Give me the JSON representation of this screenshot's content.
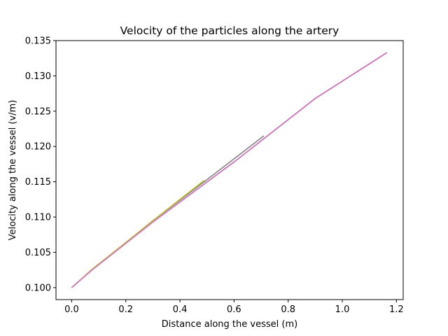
{
  "chart_data": {
    "type": "line",
    "title": "Velocity of the particles along the artery",
    "xlabel": "Distance along the vessel (m)",
    "ylabel": "Velocity along the vessel (v/m)",
    "xlim": [
      -0.058,
      1.225
    ],
    "ylim": [
      0.0983,
      0.135
    ],
    "xticks": [
      "0.0",
      "0.2",
      "0.4",
      "0.6",
      "0.8",
      "1.0",
      "1.2"
    ],
    "yticks": [
      "0.100",
      "0.105",
      "0.110",
      "0.115",
      "0.120",
      "0.125",
      "0.130",
      "0.135"
    ],
    "grid": false,
    "legend": "none",
    "series": [
      {
        "color": "#1f77b4",
        "points": [
          [
            0.0,
            0.1
          ],
          [
            0.075,
            0.1025
          ],
          [
            0.3,
            0.1093
          ],
          [
            0.6,
            0.1178
          ],
          [
            0.9,
            0.1268
          ],
          [
            1.165,
            0.1333
          ]
        ]
      },
      {
        "color": "#ff7f0e",
        "points": [
          [
            0.0,
            0.1
          ],
          [
            0.075,
            0.1025
          ],
          [
            0.3,
            0.1093
          ],
          [
            0.6,
            0.1178
          ],
          [
            0.9,
            0.1268
          ],
          [
            1.165,
            0.1333
          ]
        ]
      },
      {
        "color": "#2ca02c",
        "points": [
          [
            0.0,
            0.1
          ],
          [
            0.075,
            0.1025
          ],
          [
            0.3,
            0.1093
          ],
          [
            0.6,
            0.1178
          ],
          [
            0.9,
            0.1268
          ],
          [
            1.165,
            0.1333
          ]
        ]
      },
      {
        "color": "#d62728",
        "points": [
          [
            0.0,
            0.1
          ],
          [
            0.075,
            0.1025
          ],
          [
            0.3,
            0.1093
          ],
          [
            0.6,
            0.1178
          ],
          [
            0.9,
            0.1268
          ],
          [
            1.165,
            0.1333
          ]
        ]
      },
      {
        "color": "#9467bd",
        "points": [
          [
            0.0,
            0.1
          ],
          [
            0.075,
            0.1025
          ],
          [
            0.3,
            0.1093
          ],
          [
            0.6,
            0.1178
          ],
          [
            0.9,
            0.1268
          ],
          [
            1.165,
            0.1333
          ]
        ]
      },
      {
        "color": "#8c564b",
        "points": [
          [
            0.0,
            0.1
          ],
          [
            0.075,
            0.1025
          ],
          [
            0.3,
            0.1093
          ],
          [
            0.6,
            0.1178
          ],
          [
            0.9,
            0.1268
          ],
          [
            1.165,
            0.1333
          ]
        ]
      },
      {
        "color": "#7f7f7f",
        "points": [
          [
            0.0,
            0.1
          ],
          [
            0.075,
            0.1025
          ],
          [
            0.3,
            0.1095
          ],
          [
            0.5,
            0.1153
          ],
          [
            0.71,
            0.1215
          ]
        ]
      },
      {
        "color": "#bcbd22",
        "points": [
          [
            0.0,
            0.1
          ],
          [
            0.075,
            0.1026
          ],
          [
            0.2,
            0.1064
          ],
          [
            0.35,
            0.111
          ],
          [
            0.49,
            0.1152
          ]
        ]
      },
      {
        "color": "#17becf",
        "points": [
          [
            0.0,
            0.1
          ],
          [
            0.075,
            0.1025
          ],
          [
            0.3,
            0.1093
          ],
          [
            0.6,
            0.1178
          ],
          [
            0.9,
            0.1268
          ],
          [
            1.165,
            0.1333
          ]
        ]
      },
      {
        "color": "#e377c2",
        "points": [
          [
            0.0,
            0.1
          ],
          [
            0.075,
            0.1025
          ],
          [
            0.3,
            0.1093
          ],
          [
            0.6,
            0.1178
          ],
          [
            0.9,
            0.1268
          ],
          [
            1.165,
            0.1333
          ]
        ]
      }
    ]
  }
}
